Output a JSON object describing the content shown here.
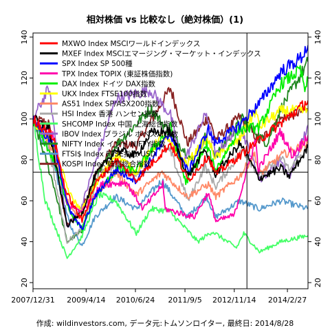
{
  "chart_data": {
    "type": "line",
    "title": "相対株価 vs 比較なし（絶対株価）(1)",
    "footer": "作成: wildinvestors.com, データ元:トムソンロイター, 最終日: 2014/8/28",
    "x_start": "2007-12-31",
    "x_end": "2014-08-28",
    "x_ticks": [
      {
        "date": "2007-12-31",
        "label": "2007/12/31"
      },
      {
        "date": "2009-04-14",
        "label": "2009/4/14"
      },
      {
        "date": "2010-06-24",
        "label": "2010/6/24"
      },
      {
        "date": "2011-09-05",
        "label": "2011/9/5"
      },
      {
        "date": "2012-11-14",
        "label": "2012/11/14"
      },
      {
        "date": "2014-02-27",
        "label": "2014/2/27"
      }
    ],
    "ylim": [
      17,
      142
    ],
    "y_ticks": [
      20,
      40,
      60,
      80,
      100,
      120,
      140
    ],
    "reference_y": 74,
    "reference_date": "2013-03-06",
    "series": [
      {
        "name": "MXWO Index MSCIワールドインデックス",
        "color": "#ff0000",
        "points": [
          [
            "2007-12-31",
            100
          ],
          [
            "2008-06-30",
            91
          ],
          [
            "2008-10-20",
            64
          ],
          [
            "2009-03-09",
            50
          ],
          [
            "2009-06-30",
            68
          ],
          [
            "2009-12-31",
            80
          ],
          [
            "2010-06-30",
            70
          ],
          [
            "2011-04-30",
            88
          ],
          [
            "2011-10-03",
            70
          ],
          [
            "2012-03-30",
            82
          ],
          [
            "2012-06-01",
            73
          ],
          [
            "2012-12-31",
            82
          ],
          [
            "2013-06-30",
            90
          ],
          [
            "2013-12-31",
            98
          ],
          [
            "2014-06-30",
            106
          ],
          [
            "2014-08-28",
            109
          ]
        ]
      },
      {
        "name": "MXEF Index MSCIエマージング・マーケット・インデックス",
        "color": "#000000",
        "points": [
          [
            "2007-12-31",
            100
          ],
          [
            "2008-05-20",
            95
          ],
          [
            "2008-10-27",
            48
          ],
          [
            "2009-03-09",
            54
          ],
          [
            "2009-06-30",
            72
          ],
          [
            "2009-12-31",
            85
          ],
          [
            "2010-06-30",
            82
          ],
          [
            "2010-11-05",
            93
          ],
          [
            "2011-04-30",
            94
          ],
          [
            "2011-10-03",
            72
          ],
          [
            "2012-03-01",
            85
          ],
          [
            "2012-06-01",
            73
          ],
          [
            "2013-01-03",
            88
          ],
          [
            "2013-06-24",
            71
          ],
          [
            "2013-12-31",
            76
          ],
          [
            "2014-03-15",
            72
          ],
          [
            "2014-08-28",
            86
          ]
        ]
      },
      {
        "name": "SPX Index SP 500種",
        "color": "#0000ff",
        "points": [
          [
            "2007-12-31",
            100
          ],
          [
            "2008-06-30",
            87
          ],
          [
            "2008-11-20",
            55
          ],
          [
            "2009-03-09",
            46
          ],
          [
            "2009-06-30",
            62
          ],
          [
            "2009-12-31",
            75
          ],
          [
            "2010-07-01",
            70
          ],
          [
            "2011-04-29",
            93
          ],
          [
            "2011-10-03",
            74
          ],
          [
            "2012-03-30",
            95
          ],
          [
            "2012-06-01",
            88
          ],
          [
            "2012-12-31",
            97
          ],
          [
            "2013-06-30",
            108
          ],
          [
            "2013-12-31",
            123
          ],
          [
            "2014-06-30",
            130
          ],
          [
            "2014-08-28",
            136
          ]
        ]
      },
      {
        "name": "TPX Index TOPIX (東証株価指数)",
        "color": "#ff00aa",
        "points": [
          [
            "2007-12-31",
            100
          ],
          [
            "2008-06-30",
            92
          ],
          [
            "2008-10-28",
            58
          ],
          [
            "2009-03-10",
            55
          ],
          [
            "2009-08-31",
            68
          ],
          [
            "2010-04-05",
            69
          ],
          [
            "2010-08-31",
            56
          ],
          [
            "2011-02-21",
            68
          ],
          [
            "2011-03-15",
            56
          ],
          [
            "2011-11-25",
            52
          ],
          [
            "2012-03-27",
            64
          ],
          [
            "2012-06-04",
            50
          ],
          [
            "2012-11-14",
            53
          ],
          [
            "2013-05-22",
            90
          ],
          [
            "2013-06-13",
            75
          ],
          [
            "2013-12-31",
            94
          ],
          [
            "2014-04-11",
            82
          ],
          [
            "2014-08-28",
            92
          ]
        ]
      },
      {
        "name": "DAX Index ドイツ DAX指数",
        "color": "#00ee00",
        "points": [
          [
            "2007-12-31",
            100
          ],
          [
            "2008-06-30",
            80
          ],
          [
            "2008-11-21",
            55
          ],
          [
            "2009-03-09",
            46
          ],
          [
            "2009-06-30",
            62
          ],
          [
            "2010-01-04",
            75
          ],
          [
            "2010-06-30",
            75
          ],
          [
            "2011-05-02",
            96
          ],
          [
            "2011-09-12",
            69
          ],
          [
            "2012-03-16",
            87
          ],
          [
            "2012-06-01",
            75
          ],
          [
            "2012-12-31",
            95
          ],
          [
            "2013-06-24",
            96
          ],
          [
            "2013-12-31",
            117
          ],
          [
            "2014-06-20",
            124
          ],
          [
            "2014-08-08",
            113
          ],
          [
            "2014-08-28",
            120
          ]
        ]
      },
      {
        "name": "UKX Index FTSE100指数",
        "color": "#ffff00",
        "points": [
          [
            "2007-12-31",
            100
          ],
          [
            "2008-06-30",
            87
          ],
          [
            "2008-11-21",
            63
          ],
          [
            "2009-03-03",
            55
          ],
          [
            "2009-06-30",
            67
          ],
          [
            "2009-12-31",
            83
          ],
          [
            "2010-07-01",
            74
          ],
          [
            "2011-02-15",
            92
          ],
          [
            "2011-09-22",
            78
          ],
          [
            "2012-03-16",
            91
          ],
          [
            "2012-06-01",
            81
          ],
          [
            "2012-12-31",
            90
          ],
          [
            "2013-05-22",
            104
          ],
          [
            "2013-06-24",
            96
          ],
          [
            "2013-12-31",
            104
          ],
          [
            "2014-08-28",
            104
          ]
        ]
      },
      {
        "name": "AS51 Index SP/ASX200指数",
        "color": "#ff8866",
        "points": [
          [
            "2007-12-31",
            100
          ],
          [
            "2008-06-30",
            84
          ],
          [
            "2008-11-20",
            57
          ],
          [
            "2009-03-06",
            52
          ],
          [
            "2009-06-30",
            62
          ],
          [
            "2009-12-31",
            74
          ],
          [
            "2010-07-01",
            63
          ],
          [
            "2011-02-15",
            74
          ],
          [
            "2011-09-26",
            62
          ],
          [
            "2012-03-30",
            68
          ],
          [
            "2012-06-04",
            62
          ],
          [
            "2012-12-31",
            72
          ],
          [
            "2013-05-14",
            83
          ],
          [
            "2013-06-24",
            73
          ],
          [
            "2013-12-31",
            82
          ],
          [
            "2014-08-28",
            88
          ]
        ]
      },
      {
        "name": "HSI Index 香港 ハンセン指数",
        "color": "#aaaaaa",
        "points": [
          [
            "2007-12-31",
            100
          ],
          [
            "2008-05-05",
            90
          ],
          [
            "2008-10-27",
            40
          ],
          [
            "2009-03-09",
            46
          ],
          [
            "2009-07-31",
            72
          ],
          [
            "2009-12-31",
            78
          ],
          [
            "2010-06-30",
            72
          ],
          [
            "2010-11-05",
            88
          ],
          [
            "2011-04-30",
            84
          ],
          [
            "2011-10-04",
            60
          ],
          [
            "2012-03-01",
            77
          ],
          [
            "2012-06-04",
            67
          ],
          [
            "2013-01-31",
            85
          ],
          [
            "2013-06-24",
            72
          ],
          [
            "2013-12-31",
            81
          ],
          [
            "2014-03-20",
            75
          ],
          [
            "2014-08-28",
            87
          ]
        ]
      },
      {
        "name": "SHCOMP Index 中国 上海総合指数",
        "color": "#44ff66",
        "points": [
          [
            "2007-12-31",
            100
          ],
          [
            "2008-04-18",
            60
          ],
          [
            "2008-10-28",
            32
          ],
          [
            "2009-03-02",
            42
          ],
          [
            "2009-08-04",
            63
          ],
          [
            "2009-12-31",
            60
          ],
          [
            "2010-07-02",
            44
          ],
          [
            "2010-11-08",
            56
          ],
          [
            "2011-04-18",
            55
          ],
          [
            "2011-12-28",
            40
          ],
          [
            "2012-05-04",
            45
          ],
          [
            "2012-12-03",
            37
          ],
          [
            "2013-02-06",
            44
          ],
          [
            "2013-06-25",
            35
          ],
          [
            "2013-12-31",
            40
          ],
          [
            "2014-08-28",
            43
          ]
        ]
      },
      {
        "name": "IBOV Index ブラジル ボベスパ指数",
        "color": "#9966cc",
        "points": [
          [
            "2007-12-31",
            100
          ],
          [
            "2008-05-20",
            115
          ],
          [
            "2008-10-27",
            47
          ],
          [
            "2009-03-09",
            58
          ],
          [
            "2009-12-31",
            110
          ],
          [
            "2010-11-04",
            114
          ],
          [
            "2011-04-30",
            102
          ],
          [
            "2011-08-08",
            77
          ],
          [
            "2012-03-13",
            103
          ],
          [
            "2012-06-01",
            82
          ],
          [
            "2013-01-03",
            97
          ],
          [
            "2013-07-03",
            70
          ],
          [
            "2013-12-31",
            80
          ],
          [
            "2014-03-14",
            71
          ],
          [
            "2014-08-28",
            97
          ]
        ]
      },
      {
        "name": "NIFTY Index インド NIFTY指数",
        "color": "#228822",
        "points": [
          [
            "2007-12-31",
            100
          ],
          [
            "2008-06-30",
            68
          ],
          [
            "2008-10-27",
            40
          ],
          [
            "2009-03-09",
            45
          ],
          [
            "2009-06-30",
            70
          ],
          [
            "2009-12-31",
            87
          ],
          [
            "2010-11-05",
            105
          ],
          [
            "2011-04-30",
            93
          ],
          [
            "2011-12-20",
            77
          ],
          [
            "2012-02-21",
            92
          ],
          [
            "2012-06-04",
            82
          ],
          [
            "2013-01-24",
            100
          ],
          [
            "2013-08-28",
            88
          ],
          [
            "2013-12-31",
            105
          ],
          [
            "2014-06-30",
            122
          ],
          [
            "2014-08-28",
            128
          ]
        ]
      },
      {
        "name": "FTSI$ Index FTSE指数 USD",
        "color": "#5599cc",
        "points": [
          [
            "2007-12-31",
            100
          ],
          [
            "2008-06-30",
            78
          ],
          [
            "2008-11-21",
            48
          ],
          [
            "2009-03-09",
            38
          ],
          [
            "2009-06-30",
            52
          ],
          [
            "2009-12-31",
            62
          ],
          [
            "2010-07-01",
            56
          ],
          [
            "2011-02-15",
            70
          ],
          [
            "2011-09-22",
            52
          ],
          [
            "2012-03-16",
            62
          ],
          [
            "2012-06-01",
            52
          ],
          [
            "2012-12-31",
            60
          ],
          [
            "2013-06-24",
            56
          ],
          [
            "2013-12-31",
            60
          ],
          [
            "2014-08-28",
            56
          ]
        ]
      },
      {
        "name": "KOSPI Index 韓国総合指数",
        "color": "#882222",
        "points": [
          [
            "2007-12-31",
            100
          ],
          [
            "2008-05-16",
            98
          ],
          [
            "2008-10-24",
            48
          ],
          [
            "2009-03-02",
            55
          ],
          [
            "2009-06-30",
            72
          ],
          [
            "2009-12-31",
            88
          ],
          [
            "2010-07-01",
            87
          ],
          [
            "2011-04-30",
            115
          ],
          [
            "2011-09-26",
            88
          ],
          [
            "2012-03-30",
            101
          ],
          [
            "2012-06-04",
            90
          ],
          [
            "2012-12-31",
            101
          ],
          [
            "2013-06-25",
            89
          ],
          [
            "2013-12-31",
            100
          ],
          [
            "2014-08-28",
            105
          ]
        ]
      }
    ]
  }
}
